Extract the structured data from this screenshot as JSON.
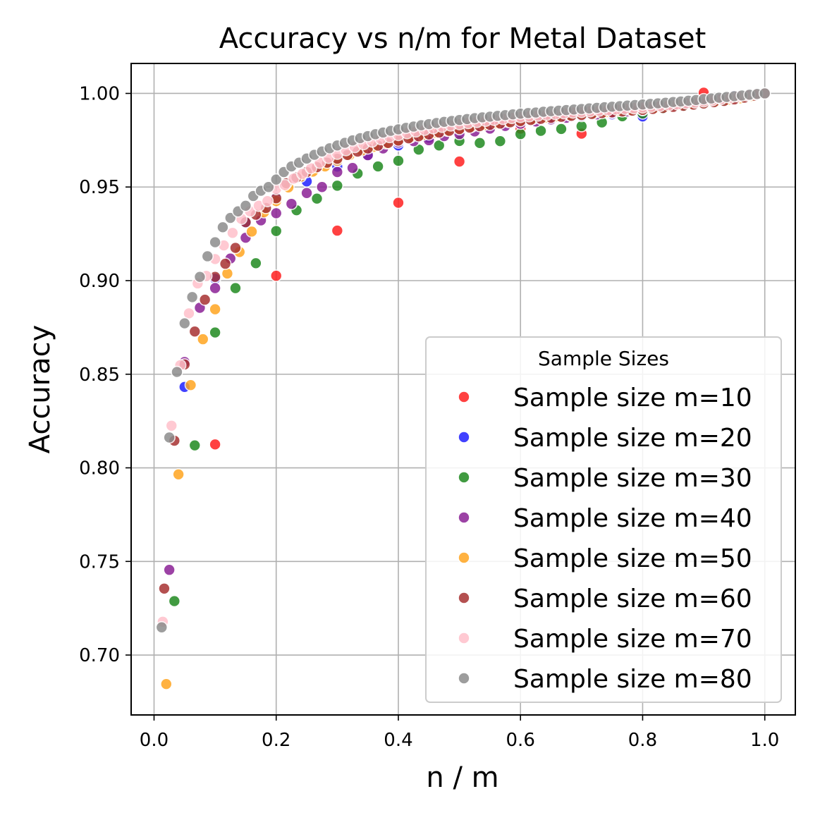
{
  "chart_data": {
    "type": "scatter",
    "title": "Accuracy vs n/m for Metal Dataset",
    "xlabel": "n / m",
    "ylabel": "Accuracy",
    "xlim": [
      -0.0375,
      1.05
    ],
    "ylim": [
      0.668,
      1.016
    ],
    "grid": true,
    "xticks": [
      0.0,
      0.2,
      0.4,
      0.6,
      0.8,
      1.0
    ],
    "xtick_labels": [
      "0.0",
      "0.2",
      "0.4",
      "0.6",
      "0.8",
      "1.0"
    ],
    "yticks": [
      0.7,
      0.75,
      0.8,
      0.85,
      0.9,
      0.95,
      1.0
    ],
    "ytick_labels": [
      "0.70",
      "0.75",
      "0.80",
      "0.85",
      "0.90",
      "0.95",
      "1.00"
    ],
    "legend_title": "Sample Sizes",
    "legend_position": "lower-right",
    "series": [
      {
        "name": "Sample size m=10",
        "m": 10,
        "color": "#ff2020",
        "x": [
          0.1,
          0.2,
          0.3,
          0.4,
          0.5,
          0.6,
          0.7,
          0.8,
          0.9,
          1.0
        ],
        "y": [
          0.8125,
          0.9026,
          0.9267,
          0.9416,
          0.9636,
          0.9812,
          0.9785,
          0.9889,
          1.0004,
          1.0
        ]
      },
      {
        "name": "Sample size m=20",
        "m": 20,
        "color": "#2020ff",
        "x": [
          0.05,
          0.1,
          0.15,
          0.2,
          0.25,
          0.3,
          0.35,
          0.4,
          0.45,
          0.5,
          0.55,
          0.6,
          0.65,
          0.7,
          0.75,
          0.8,
          0.85,
          0.9,
          0.95,
          1.0
        ],
        "y": [
          0.8432,
          0.901,
          0.931,
          0.9445,
          0.953,
          0.9609,
          0.9671,
          0.9722,
          0.9763,
          0.9797,
          0.9826,
          0.9852,
          0.9874,
          0.9894,
          0.9888,
          0.9877,
          0.994,
          0.996,
          0.9985,
          1.0
        ]
      },
      {
        "name": "Sample size m=30",
        "m": 30,
        "color": "#218a21",
        "x": [
          0.0333,
          0.0667,
          0.1,
          0.1333,
          0.1667,
          0.2,
          0.2333,
          0.2667,
          0.3,
          0.3333,
          0.3667,
          0.4,
          0.4333,
          0.4667,
          0.5,
          0.5333,
          0.5667,
          0.6,
          0.6333,
          0.6667,
          0.7,
          0.7333,
          0.7667,
          0.8,
          0.8333,
          0.8667,
          0.9,
          0.9333,
          0.9667,
          1.0
        ],
        "y": [
          0.7288,
          0.812,
          0.8723,
          0.896,
          0.9093,
          0.9265,
          0.9376,
          0.9438,
          0.9507,
          0.9572,
          0.961,
          0.964,
          0.97,
          0.9722,
          0.9746,
          0.9735,
          0.9745,
          0.9783,
          0.98,
          0.981,
          0.9825,
          0.9845,
          0.9878,
          0.9893,
          0.992,
          0.9934,
          0.9944,
          0.9962,
          0.9984,
          1.0
        ]
      },
      {
        "name": "Sample size m=40",
        "m": 40,
        "color": "#8b2296",
        "x": [
          0.025,
          0.05,
          0.075,
          0.1,
          0.125,
          0.15,
          0.175,
          0.2,
          0.225,
          0.25,
          0.275,
          0.3,
          0.325,
          0.35,
          0.375,
          0.4,
          0.425,
          0.45,
          0.475,
          0.5,
          0.525,
          0.55,
          0.575,
          0.6,
          0.625,
          0.65,
          0.675,
          0.7,
          0.725,
          0.75,
          0.775,
          0.8,
          0.825,
          0.85,
          0.875,
          0.9,
          0.925,
          0.95,
          0.975,
          1.0
        ],
        "y": [
          0.7455,
          0.8565,
          0.8855,
          0.896,
          0.9118,
          0.9229,
          0.9322,
          0.936,
          0.941,
          0.9468,
          0.95,
          0.958,
          0.9602,
          0.967,
          0.9706,
          0.9738,
          0.9745,
          0.975,
          0.9772,
          0.9783,
          0.9797,
          0.9812,
          0.9826,
          0.9838,
          0.985,
          0.9861,
          0.987,
          0.9879,
          0.9888,
          0.9896,
          0.9904,
          0.9911,
          0.9926,
          0.9938,
          0.9948,
          0.9957,
          0.9968,
          0.9978,
          0.999,
          1.0
        ]
      },
      {
        "name": "Sample size m=50",
        "m": 50,
        "color": "#ffa520",
        "x": [
          0.02,
          0.04,
          0.06,
          0.08,
          0.1,
          0.12,
          0.14,
          0.16,
          0.18,
          0.2,
          0.22,
          0.24,
          0.26,
          0.28,
          0.3,
          0.32,
          0.34,
          0.36,
          0.38,
          0.4,
          0.42,
          0.44,
          0.46,
          0.48,
          0.5,
          0.52,
          0.54,
          0.56,
          0.58,
          0.6,
          0.62,
          0.64,
          0.66,
          0.68,
          0.7,
          0.72,
          0.74,
          0.76,
          0.78,
          0.8,
          0.82,
          0.84,
          0.86,
          0.88,
          0.9,
          0.92,
          0.94,
          0.96,
          0.98,
          1.0
        ],
        "y": [
          0.6845,
          0.7965,
          0.8442,
          0.8687,
          0.8847,
          0.9038,
          0.9153,
          0.9262,
          0.9365,
          0.9425,
          0.9498,
          0.9555,
          0.9582,
          0.961,
          0.964,
          0.967,
          0.9695,
          0.9715,
          0.9733,
          0.975,
          0.9765,
          0.9778,
          0.979,
          0.9801,
          0.9812,
          0.9822,
          0.9831,
          0.984,
          0.9848,
          0.9856,
          0.9863,
          0.987,
          0.9877,
          0.9883,
          0.9889,
          0.9895,
          0.99,
          0.9906,
          0.9911,
          0.9916,
          0.9922,
          0.993,
          0.9937,
          0.9944,
          0.9951,
          0.9958,
          0.9966,
          0.9974,
          0.9985,
          1.0
        ]
      },
      {
        "name": "Sample size m=60",
        "m": 60,
        "color": "#a83232",
        "x": [
          0.0167,
          0.0333,
          0.05,
          0.0667,
          0.0833,
          0.1,
          0.1167,
          0.1333,
          0.15,
          0.1667,
          0.1833,
          0.2,
          0.2167,
          0.2333,
          0.25,
          0.2667,
          0.2833,
          0.3,
          0.3167,
          0.3333,
          0.35,
          0.3667,
          0.3833,
          0.4,
          0.4167,
          0.4333,
          0.45,
          0.4667,
          0.4833,
          0.5,
          0.5167,
          0.5333,
          0.55,
          0.5667,
          0.5833,
          0.6,
          0.6167,
          0.6333,
          0.65,
          0.6667,
          0.6833,
          0.7,
          0.7167,
          0.7333,
          0.75,
          0.7667,
          0.7833,
          0.8,
          0.8167,
          0.8333,
          0.85,
          0.8667,
          0.8833,
          0.9,
          0.9167,
          0.9333,
          0.95,
          0.9667,
          0.9833,
          1.0
        ],
        "y": [
          0.7355,
          0.8145,
          0.8552,
          0.8728,
          0.8898,
          0.902,
          0.909,
          0.9175,
          0.9312,
          0.9352,
          0.9388,
          0.944,
          0.952,
          0.9551,
          0.958,
          0.9606,
          0.963,
          0.9651,
          0.9671,
          0.9689,
          0.9706,
          0.9721,
          0.9735,
          0.9748,
          0.976,
          0.9771,
          0.9781,
          0.9791,
          0.98,
          0.9809,
          0.9817,
          0.9825,
          0.9832,
          0.9839,
          0.9846,
          0.9852,
          0.9858,
          0.9864,
          0.987,
          0.9875,
          0.988,
          0.9885,
          0.989,
          0.9895,
          0.9899,
          0.9904,
          0.9908,
          0.9912,
          0.9917,
          0.9922,
          0.9928,
          0.9934,
          0.994,
          0.9946,
          0.9953,
          0.996,
          0.9968,
          0.9977,
          0.9988,
          1.0
        ]
      },
      {
        "name": "Sample size m=70",
        "m": 70,
        "color": "#ffc0cb",
        "x": [
          0.0143,
          0.0286,
          0.0429,
          0.0571,
          0.0714,
          0.0857,
          0.1,
          0.1143,
          0.1286,
          0.1429,
          0.1571,
          0.1714,
          0.1857,
          0.2,
          0.2143,
          0.2286,
          0.2429,
          0.2571,
          0.2714,
          0.2857,
          0.3,
          0.3143,
          0.3286,
          0.3429,
          0.3571,
          0.3714,
          0.3857,
          0.4,
          0.4143,
          0.4286,
          0.4429,
          0.4571,
          0.4714,
          0.4857,
          0.5,
          0.5143,
          0.5286,
          0.5429,
          0.5571,
          0.5714,
          0.5857,
          0.6,
          0.6143,
          0.6286,
          0.6429,
          0.6571,
          0.6714,
          0.6857,
          0.7,
          0.7143,
          0.7286,
          0.7429,
          0.7571,
          0.7714,
          0.7857,
          0.8,
          0.8143,
          0.8286,
          0.8429,
          0.8571,
          0.8714,
          0.8857,
          0.9,
          0.9143,
          0.9286,
          0.9429,
          0.9571,
          0.9714,
          0.9857,
          1.0
        ],
        "y": [
          0.7178,
          0.8225,
          0.8548,
          0.8825,
          0.8985,
          0.9025,
          0.9115,
          0.9188,
          0.9255,
          0.933,
          0.937,
          0.94,
          0.9425,
          0.949,
          0.951,
          0.9545,
          0.957,
          0.96,
          0.963,
          0.9656,
          0.9678,
          0.9697,
          0.9714,
          0.9729,
          0.9743,
          0.9756,
          0.9767,
          0.9778,
          0.9788,
          0.9797,
          0.9806,
          0.9814,
          0.9822,
          0.9829,
          0.9836,
          0.9842,
          0.9848,
          0.9854,
          0.9859,
          0.9864,
          0.9869,
          0.9874,
          0.9878,
          0.9882,
          0.9886,
          0.989,
          0.9894,
          0.9898,
          0.9901,
          0.9905,
          0.9908,
          0.9911,
          0.9915,
          0.9918,
          0.9921,
          0.9925,
          0.9929,
          0.9933,
          0.9937,
          0.9942,
          0.9947,
          0.9952,
          0.9958,
          0.9964,
          0.997,
          0.9977,
          0.9984,
          0.999,
          0.9995,
          1.0
        ]
      },
      {
        "name": "Sample size m=80",
        "m": 80,
        "color": "#8c8c8c",
        "x": [
          0.0125,
          0.025,
          0.0375,
          0.05,
          0.0625,
          0.075,
          0.0875,
          0.1,
          0.1125,
          0.125,
          0.1375,
          0.15,
          0.1625,
          0.175,
          0.1875,
          0.2,
          0.2125,
          0.225,
          0.2375,
          0.25,
          0.2625,
          0.275,
          0.2875,
          0.3,
          0.3125,
          0.325,
          0.3375,
          0.35,
          0.3625,
          0.375,
          0.3875,
          0.4,
          0.4125,
          0.425,
          0.4375,
          0.45,
          0.4625,
          0.475,
          0.4875,
          0.5,
          0.5125,
          0.525,
          0.5375,
          0.55,
          0.5625,
          0.575,
          0.5875,
          0.6,
          0.6125,
          0.625,
          0.6375,
          0.65,
          0.6625,
          0.675,
          0.6875,
          0.7,
          0.7125,
          0.725,
          0.7375,
          0.75,
          0.7625,
          0.775,
          0.7875,
          0.8,
          0.8125,
          0.825,
          0.8375,
          0.85,
          0.8625,
          0.875,
          0.8875,
          0.9,
          0.9125,
          0.925,
          0.9375,
          0.95,
          0.9625,
          0.975,
          0.9875,
          1.0
        ],
        "y": [
          0.7148,
          0.8162,
          0.8512,
          0.8772,
          0.8912,
          0.902,
          0.913,
          0.9205,
          0.9285,
          0.9335,
          0.937,
          0.94,
          0.9452,
          0.948,
          0.95,
          0.954,
          0.958,
          0.961,
          0.963,
          0.9652,
          0.9672,
          0.969,
          0.9707,
          0.9722,
          0.9736,
          0.9749,
          0.9761,
          0.9772,
          0.9782,
          0.9791,
          0.98,
          0.9808,
          0.9816,
          0.9823,
          0.983,
          0.9836,
          0.9842,
          0.9848,
          0.9853,
          0.9858,
          0.9863,
          0.9868,
          0.9872,
          0.9876,
          0.988,
          0.9884,
          0.9888,
          0.9892,
          0.9895,
          0.9898,
          0.9902,
          0.9905,
          0.9908,
          0.9911,
          0.9914,
          0.9917,
          0.992,
          0.9923,
          0.9926,
          0.9929,
          0.9932,
          0.9935,
          0.9938,
          0.9941,
          0.9944,
          0.9947,
          0.995,
          0.9954,
          0.9957,
          0.9961,
          0.9965,
          0.9969,
          0.9973,
          0.9977,
          0.9981,
          0.9985,
          0.9989,
          0.9993,
          0.9997,
          1.0
        ]
      }
    ]
  }
}
